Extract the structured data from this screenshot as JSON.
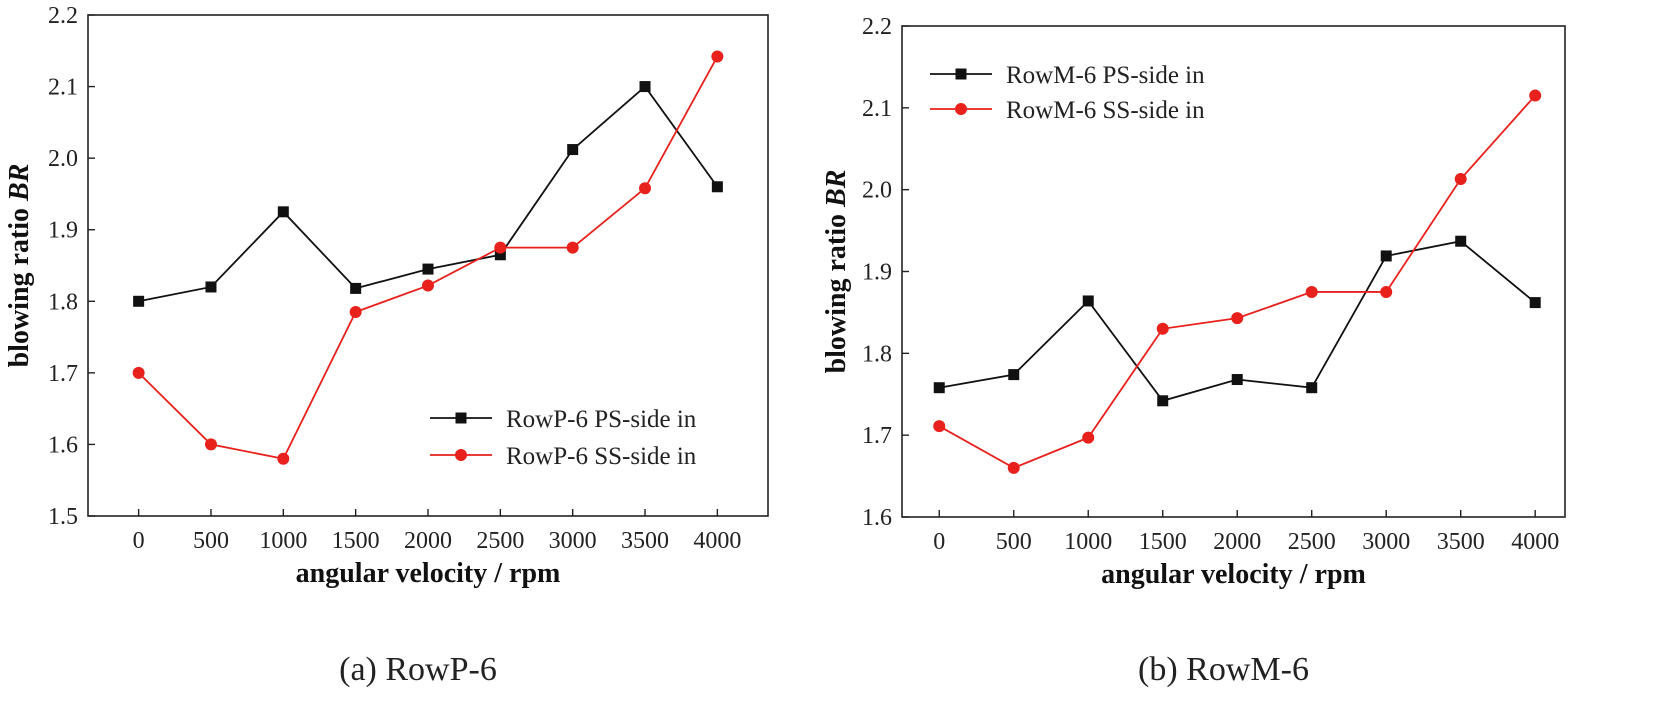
{
  "chart_data": [
    {
      "type": "line",
      "caption": "(a) RowP-6",
      "xlabel": "angular velocity / rpm",
      "ylabel_prefix": "blowing ratio ",
      "ylabel_symbol": "BR",
      "categories": [
        "0",
        "500",
        "1000",
        "1500",
        "2000",
        "2500",
        "3000",
        "3500",
        "4000"
      ],
      "x": [
        0,
        500,
        1000,
        1500,
        2000,
        2500,
        3000,
        3500,
        4000
      ],
      "xlim": [
        -350,
        4350
      ],
      "ylim": [
        1.5,
        2.2
      ],
      "yticks": [
        1.5,
        1.6,
        1.7,
        1.8,
        1.9,
        2.0,
        2.1,
        2.2
      ],
      "ytick_labels": [
        "1.5",
        "1.6",
        "1.7",
        "1.8",
        "1.9",
        "2.0",
        "2.1",
        "2.2"
      ],
      "legend_position": "bottom-right",
      "series": [
        {
          "name": "RowP-6 PS-side in",
          "color": "#111111",
          "marker": "square",
          "values": [
            1.8,
            1.82,
            1.925,
            1.818,
            1.845,
            1.865,
            2.012,
            2.1,
            1.96
          ]
        },
        {
          "name": "RowP-6 SS-side in",
          "color": "#e8211c",
          "marker": "circle",
          "values": [
            1.7,
            1.6,
            1.58,
            1.785,
            1.822,
            1.875,
            1.875,
            1.958,
            2.142
          ]
        }
      ]
    },
    {
      "type": "line",
      "caption": "(b) RowM-6",
      "xlabel": "angular velocity / rpm",
      "ylabel_prefix": "blowing ratio ",
      "ylabel_symbol": "BR",
      "categories": [
        "0",
        "500",
        "1000",
        "1500",
        "2000",
        "2500",
        "3000",
        "3500",
        "4000"
      ],
      "x": [
        0,
        500,
        1000,
        1500,
        2000,
        2500,
        3000,
        3500,
        4000
      ],
      "xlim": [
        -250,
        4200
      ],
      "ylim": [
        1.6,
        2.2
      ],
      "yticks": [
        1.6,
        1.7,
        1.8,
        1.9,
        2.0,
        2.1,
        2.2
      ],
      "ytick_labels": [
        "1.6",
        "1.7",
        "1.8",
        "1.9",
        "2.0",
        "2.1",
        "2.2"
      ],
      "legend_position": "top-left",
      "series": [
        {
          "name": "RowM-6 PS-side in",
          "color": "#111111",
          "marker": "square",
          "values": [
            1.758,
            1.774,
            1.864,
            1.742,
            1.768,
            1.758,
            1.919,
            1.937,
            1.862
          ]
        },
        {
          "name": "RowM-6 SS-side in",
          "color": "#e8211c",
          "marker": "circle",
          "values": [
            1.711,
            1.66,
            1.697,
            1.83,
            1.843,
            1.875,
            1.875,
            2.013,
            2.115
          ]
        }
      ]
    }
  ]
}
